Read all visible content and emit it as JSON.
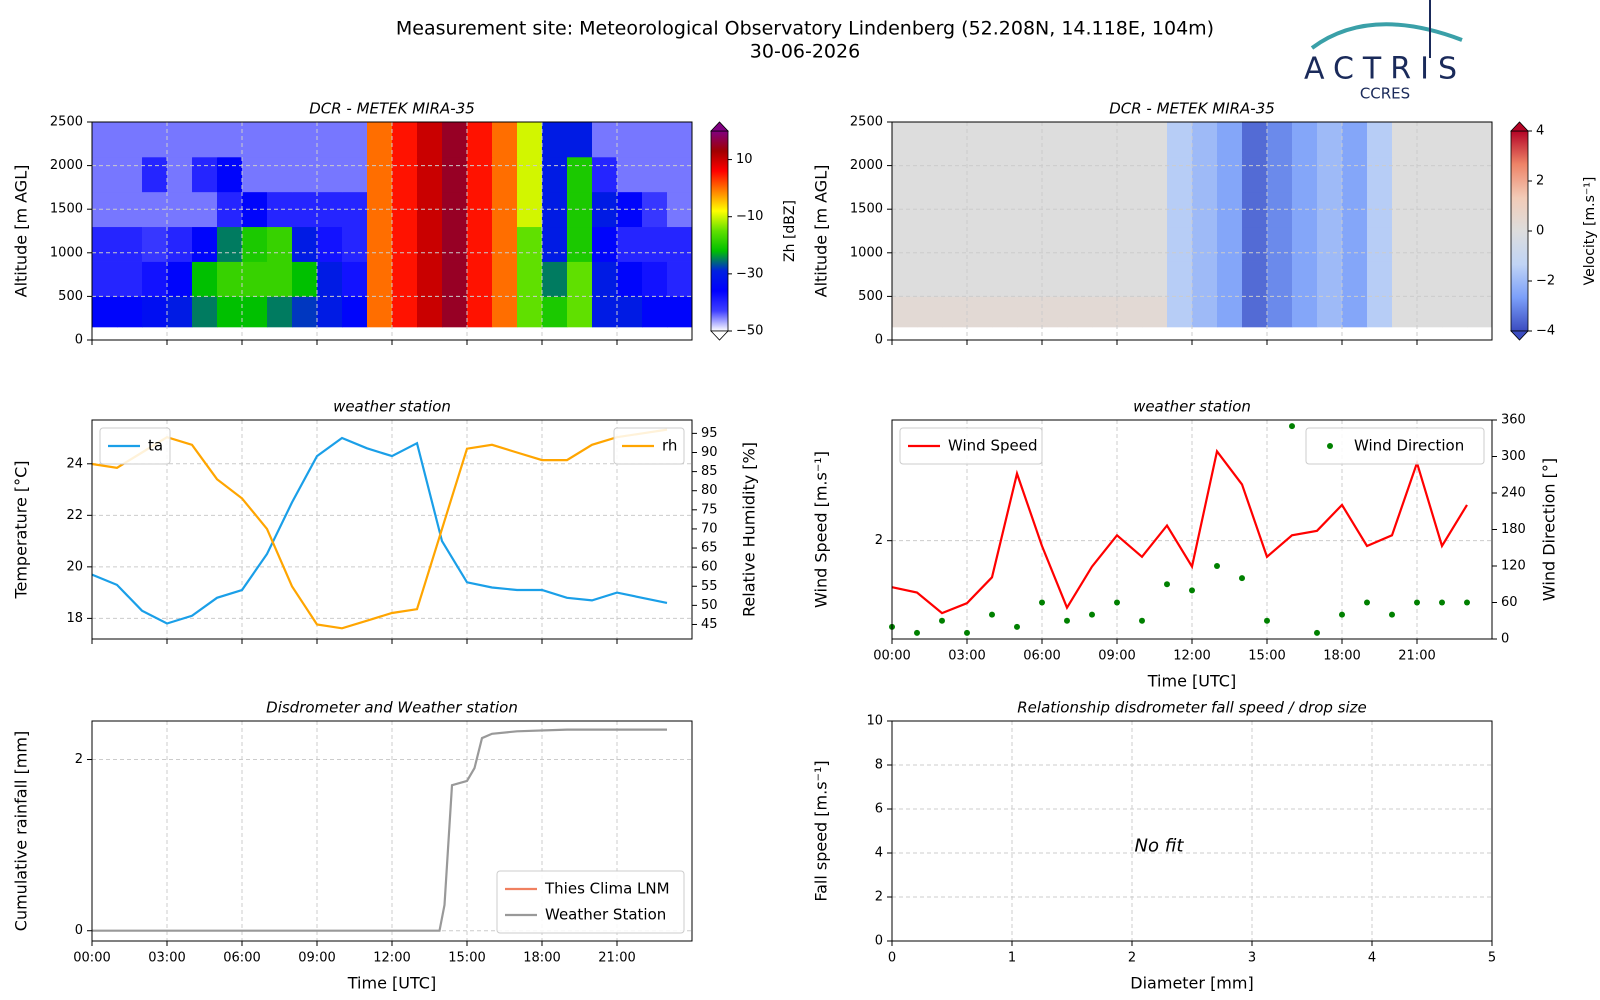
{
  "page_title": "Measurement site: Meteorological Observatory Lindenberg (52.208N, 14.118E, 104m)",
  "page_subtitle": "30-06-2026",
  "logo": {
    "name": "ACTRIS",
    "subtitle": "CCRES"
  },
  "chart_data": [
    {
      "type": "heatmap",
      "title": "DCR - METEK MIRA-35",
      "ylabel": "Altitude [m AGL]",
      "colorbar_label": "Zh [dBZ]",
      "x_edges": [
        0,
        1,
        2,
        3,
        4,
        5,
        6,
        7,
        8,
        9,
        10,
        11,
        12,
        13,
        14,
        15,
        16,
        17,
        18,
        19,
        20,
        21,
        22,
        23,
        24
      ],
      "y_edges": [
        150,
        500,
        900,
        1300,
        1700,
        2100,
        2500
      ],
      "values": [
        [
          -35,
          -35,
          -33,
          -30,
          -25,
          -22,
          -22,
          -25,
          -28,
          -30,
          -35,
          0,
          5,
          10,
          15,
          5,
          0,
          -15,
          -20,
          -15,
          -30,
          -30,
          -35,
          -35
        ],
        [
          -40,
          -40,
          -38,
          -35,
          -22,
          -18,
          -18,
          -18,
          -22,
          -30,
          -38,
          0,
          5,
          10,
          15,
          5,
          0,
          -15,
          -25,
          -15,
          -30,
          -35,
          -38,
          -40
        ],
        [
          -40,
          -40,
          -42,
          -40,
          -35,
          -25,
          -20,
          -18,
          -30,
          -38,
          -40,
          0,
          5,
          10,
          15,
          5,
          0,
          -15,
          -30,
          -20,
          -35,
          -40,
          -40,
          -40
        ],
        [
          -45,
          -45,
          -45,
          -45,
          -45,
          -40,
          -35,
          -40,
          -40,
          -40,
          -40,
          0,
          5,
          10,
          15,
          5,
          0,
          -10,
          -30,
          -20,
          -30,
          -35,
          -42,
          -45
        ],
        [
          -45,
          -45,
          -40,
          -45,
          -40,
          -35,
          -45,
          -45,
          -45,
          -45,
          -45,
          0,
          5,
          10,
          15,
          5,
          0,
          -10,
          -30,
          -20,
          -40,
          -45,
          -45,
          -45
        ],
        [
          -45,
          -45,
          -45,
          -45,
          -45,
          -45,
          -45,
          -45,
          -45,
          -45,
          -45,
          0,
          5,
          10,
          15,
          5,
          0,
          -10,
          -30,
          -30,
          -45,
          -45,
          -45,
          -45
        ]
      ],
      "xlim": [
        0,
        24
      ],
      "xticks": [
        0,
        3,
        6,
        9,
        12,
        15,
        18,
        21
      ],
      "xtick_labels": false,
      "ylim": [
        0,
        2500
      ],
      "yticks": [
        0,
        500,
        1000,
        1500,
        2000,
        2500
      ],
      "zlim": [
        -50,
        20
      ],
      "zticks": [
        {
          "value": -50,
          "label": "−50"
        },
        {
          "value": -30,
          "label": "−30"
        },
        {
          "value": -10,
          "label": "−10"
        },
        10
      ],
      "colormap": [
        "#ffffff",
        "#4040ff",
        "#0000ff",
        "#0020e0",
        "#00c000",
        "#60e000",
        "#ffff00",
        "#ff8000",
        "#ff0000",
        "#a00000",
        "#800080"
      ],
      "grid": true
    },
    {
      "type": "heatmap",
      "title": "DCR - METEK MIRA-35",
      "ylabel": "Altitude [m AGL]",
      "colorbar_label": "Velocity [m.s⁻¹]",
      "x_edges": [
        0,
        1,
        2,
        3,
        4,
        5,
        6,
        7,
        8,
        9,
        10,
        11,
        12,
        13,
        14,
        15,
        16,
        17,
        18,
        19,
        20,
        21,
        22,
        23,
        24
      ],
      "y_edges": [
        150,
        500,
        900,
        1300,
        1700,
        2100,
        2500
      ],
      "values": [
        [
          0.3,
          0.3,
          0.3,
          0.3,
          0.3,
          0.3,
          0.3,
          0.3,
          0.3,
          0.3,
          0.3,
          -1.5,
          -2,
          -2.5,
          -3.5,
          -3,
          -2.5,
          -2,
          -2.5,
          -1.5,
          0,
          0,
          0,
          0
        ],
        [
          0,
          0,
          0,
          0,
          0,
          0,
          0,
          0,
          0,
          0,
          0,
          -1.5,
          -2,
          -2.5,
          -3.5,
          -3,
          -2.5,
          -2,
          -2.5,
          -1.5,
          0,
          0,
          0,
          0
        ],
        [
          0,
          0,
          0,
          0,
          0,
          0,
          0,
          0,
          0,
          0,
          0,
          -1.5,
          -2,
          -2.5,
          -3.5,
          -3,
          -2.5,
          -2,
          -2.5,
          -1.5,
          0,
          0,
          0,
          0
        ],
        [
          0,
          0,
          0,
          0,
          0,
          0,
          0,
          0,
          0,
          0,
          0,
          -1.5,
          -2,
          -2.5,
          -3.5,
          -3,
          -2.5,
          -2,
          -2.5,
          -1.5,
          0,
          0,
          0,
          0
        ],
        [
          0,
          0,
          0,
          0,
          0,
          0,
          0,
          0,
          0,
          0,
          0,
          -1.5,
          -2,
          -2.5,
          -3.5,
          -3,
          -2.5,
          -2,
          -2.5,
          -1.5,
          0,
          0,
          0,
          0
        ],
        [
          0,
          0,
          0,
          0,
          0,
          0,
          0,
          0,
          0,
          0,
          0,
          -1.5,
          -2,
          -2.5,
          -3.5,
          -3,
          -2.5,
          -2,
          -2.5,
          -1.5,
          0,
          0,
          0,
          0
        ]
      ],
      "xlim": [
        0,
        24
      ],
      "xticks": [
        0,
        3,
        6,
        9,
        12,
        15,
        18,
        21
      ],
      "xtick_labels": false,
      "ylim": [
        0,
        2500
      ],
      "yticks": [
        0,
        500,
        1000,
        1500,
        2000,
        2500
      ],
      "zlim": [
        -4,
        4
      ],
      "zticks": [
        {
          "value": -4,
          "label": "−4"
        },
        {
          "value": -2,
          "label": "−2"
        },
        0,
        2,
        4
      ],
      "colormap": [
        "#3b4cc0",
        "#7b9ff9",
        "#c0d4f5",
        "#dddddd",
        "#f2cbb7",
        "#ee8468",
        "#b40426"
      ],
      "grid": true
    },
    {
      "type": "line",
      "title": "weather station",
      "ylabel": "Temperature [°C]",
      "y2label": "Relative Humidity [%]",
      "x": [
        0,
        1,
        2,
        3,
        4,
        5,
        6,
        7,
        8,
        9,
        10,
        11,
        12,
        13,
        14,
        15,
        16,
        17,
        18,
        19,
        20,
        21,
        22,
        23
      ],
      "xlim": [
        0,
        24
      ],
      "xticks": [
        0,
        3,
        6,
        9,
        12,
        15,
        18,
        21
      ],
      "xtick_labels": false,
      "ylim": [
        17.2,
        25.7
      ],
      "yticks": [
        18,
        20,
        22,
        24
      ],
      "y2lim": [
        41.2,
        98.5
      ],
      "y2ticks": [
        45,
        50,
        55,
        60,
        65,
        70,
        75,
        80,
        85,
        90,
        95
      ],
      "grid": true,
      "series": [
        {
          "name": "ta",
          "color": "#1a9fe8",
          "legend": "upper left",
          "values": [
            19.7,
            19.3,
            18.3,
            17.8,
            18.1,
            18.8,
            19.1,
            20.5,
            22.5,
            24.3,
            25.0,
            24.6,
            24.3,
            24.8,
            21.0,
            19.4,
            19.2,
            19.1,
            19.1,
            18.8,
            18.7,
            19.0,
            18.8,
            18.6
          ]
        },
        {
          "name": "rh",
          "color": "#ffa500",
          "axis": "y2",
          "legend": "upper right",
          "values": [
            87,
            86,
            90,
            94,
            92,
            83,
            78,
            70,
            55,
            45,
            44,
            46,
            48,
            49,
            70,
            91,
            92,
            90,
            88,
            88,
            92,
            94,
            95,
            96
          ]
        }
      ]
    },
    {
      "type": "line",
      "title": "weather station",
      "ylabel": "Wind Speed [m.s⁻¹]",
      "y2label": "Wind Direction [°]",
      "xlabel": "Time [UTC]",
      "x": [
        0,
        1,
        2,
        3,
        4,
        5,
        6,
        7,
        8,
        9,
        10,
        11,
        12,
        13,
        14,
        15,
        16,
        17,
        18,
        19,
        20,
        21,
        22,
        23
      ],
      "xlim": [
        0,
        24
      ],
      "xticks": [
        {
          "value": 0,
          "label": "00:00"
        },
        {
          "value": 3,
          "label": "03:00"
        },
        {
          "value": 6,
          "label": "06:00"
        },
        {
          "value": 9,
          "label": "09:00"
        },
        {
          "value": 12,
          "label": "12:00"
        },
        {
          "value": 15,
          "label": "15:00"
        },
        {
          "value": 18,
          "label": "18:00"
        },
        {
          "value": 21,
          "label": "21:00"
        }
      ],
      "ylim": [
        0.9,
        3.35
      ],
      "yticks": [
        2
      ],
      "y2lim": [
        0,
        360
      ],
      "y2ticks": [
        0,
        60,
        120,
        180,
        240,
        300,
        360
      ],
      "grid": true,
      "series": [
        {
          "name": "Wind Speed",
          "color": "#ff0000",
          "legend": "upper left",
          "values": [
            1.48,
            1.42,
            1.19,
            1.3,
            1.59,
            2.75,
            1.94,
            1.25,
            1.71,
            2.06,
            1.82,
            2.17,
            1.71,
            3.0,
            2.63,
            1.82,
            2.06,
            2.11,
            2.4,
            1.94,
            2.06,
            2.87,
            1.94,
            2.4
          ]
        },
        {
          "name": "Wind Direction",
          "color": "#008000",
          "axis": "y2",
          "style": "markers",
          "legend": "upper right",
          "values": [
            20,
            10,
            30,
            10,
            40,
            20,
            60,
            30,
            40,
            60,
            30,
            90,
            80,
            120,
            100,
            30,
            350,
            10,
            40,
            60,
            40,
            60,
            60,
            60
          ]
        }
      ]
    },
    {
      "type": "line",
      "title": "Disdrometer and Weather station",
      "ylabel": "Cumulative rainfall [mm]",
      "xlabel": "Time [UTC]",
      "x": [
        0,
        13.9,
        14.1,
        14.4,
        15,
        15.3,
        15.6,
        16,
        17,
        19,
        23
      ],
      "xlim": [
        0,
        24
      ],
      "xticks": [
        {
          "value": 0,
          "label": "00:00"
        },
        {
          "value": 3,
          "label": "03:00"
        },
        {
          "value": 6,
          "label": "06:00"
        },
        {
          "value": 9,
          "label": "09:00"
        },
        {
          "value": 12,
          "label": "12:00"
        },
        {
          "value": 15,
          "label": "15:00"
        },
        {
          "value": 18,
          "label": "18:00"
        },
        {
          "value": 21,
          "label": "21:00"
        }
      ],
      "ylim": [
        -0.12,
        2.45
      ],
      "yticks": [
        0,
        2
      ],
      "grid": true,
      "legend": "lower right",
      "series": [
        {
          "name": "Thies Clima LNM",
          "color": "#f08060",
          "values": [
            null,
            null,
            null,
            null,
            null,
            null,
            null,
            null,
            null,
            null,
            null
          ]
        },
        {
          "name": "Weather Station",
          "color": "#999999",
          "values": [
            0,
            0,
            0.3,
            1.7,
            1.75,
            1.9,
            2.25,
            2.3,
            2.33,
            2.35,
            2.35
          ]
        }
      ]
    },
    {
      "type": "scatter",
      "title": "Relationship disdrometer fall speed / drop size",
      "xlabel": "Diameter [mm]",
      "ylabel": "Fall speed [m.s⁻¹]",
      "annotation": "No fit",
      "xlim": [
        0,
        5
      ],
      "xticks": [
        0,
        1,
        2,
        3,
        4,
        5
      ],
      "ylim": [
        0,
        10
      ],
      "yticks": [
        0,
        2,
        4,
        6,
        8,
        10
      ],
      "grid": true
    }
  ]
}
